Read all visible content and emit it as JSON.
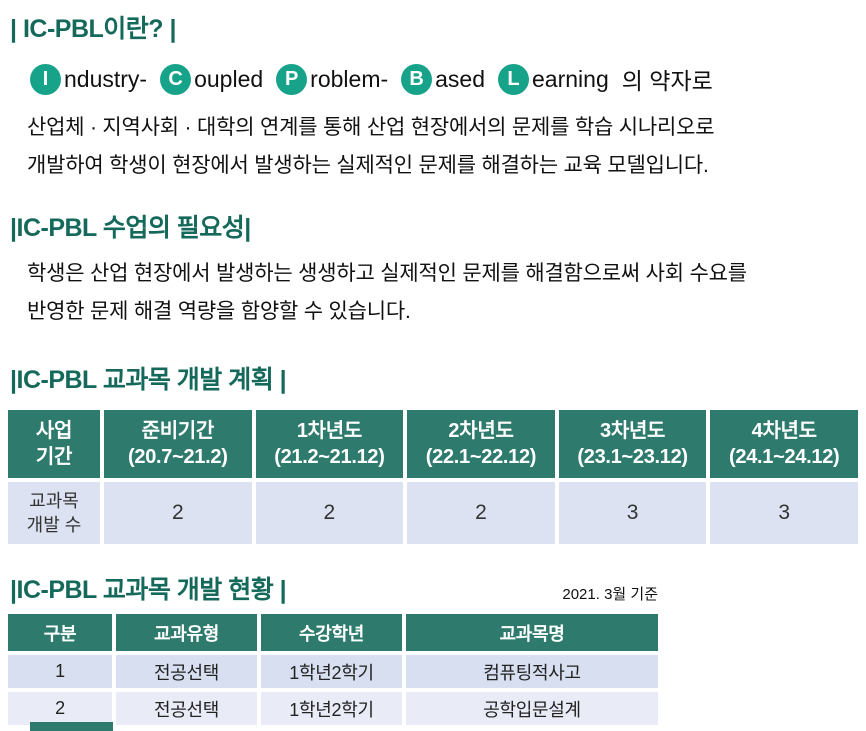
{
  "colors": {
    "title_teal": "#15695b",
    "badge_teal": "#17a38a",
    "table_header_bg": "#2e7b6d",
    "plan_row_bg": "#dce2f1",
    "status_row1_bg": "#d8dff0",
    "status_row2_bg": "#e9ecf6"
  },
  "section1": {
    "title": "| IC-PBL이란? |",
    "acronym": [
      {
        "letter": "I",
        "rest": "ndustry-"
      },
      {
        "letter": "C",
        "rest": "oupled"
      },
      {
        "letter": "P",
        "rest": "roblem-"
      },
      {
        "letter": "B",
        "rest": "ased"
      },
      {
        "letter": "L",
        "rest": "earning"
      }
    ],
    "acronym_suffix": "의 약자로",
    "body_line1": "산업체 · 지역사회 · 대학의 연계를 통해 산업 현장에서의 문제를 학습 시나리오로",
    "body_line2": "개발하여 학생이 현장에서 발생하는 실제적인 문제를 해결하는 교육 모델입니다."
  },
  "section2": {
    "title": "|IC-PBL 수업의 필요성|",
    "body_line1": "학생은 산업 현장에서 발생하는 생생하고 실제적인 문제를 해결함으로써 사회 수요를",
    "body_line2": "반영한 문제 해결 역량을 함양할 수 있습니다."
  },
  "section3": {
    "title": "|IC-PBL 교과목 개발 계획 |",
    "table": {
      "header": [
        {
          "line1": "사업",
          "line2": "기간"
        },
        {
          "line1": "준비기간",
          "line2": "(20.7~21.2)"
        },
        {
          "line1": "1차년도",
          "line2": "(21.2~21.12)"
        },
        {
          "line1": "2차년도",
          "line2": "(22.1~22.12)"
        },
        {
          "line1": "3차년도",
          "line2": "(23.1~23.12)"
        },
        {
          "line1": "4차년도",
          "line2": "(24.1~24.12)"
        }
      ],
      "row_label_line1": "교과목",
      "row_label_line2": "개발 수",
      "values": [
        "2",
        "2",
        "2",
        "3",
        "3"
      ]
    }
  },
  "section4": {
    "title": "|IC-PBL 교과목 개발 현황 |",
    "date_note": "2021. 3월 기준",
    "table": {
      "headers": [
        "구분",
        "교과유형",
        "수강학년",
        "교과목명"
      ],
      "rows": [
        [
          "1",
          "전공선택",
          "1학년2학기",
          "컴퓨팅적사고"
        ],
        [
          "2",
          "전공선택",
          "1학년2학기",
          "공학입문설계"
        ]
      ]
    }
  }
}
